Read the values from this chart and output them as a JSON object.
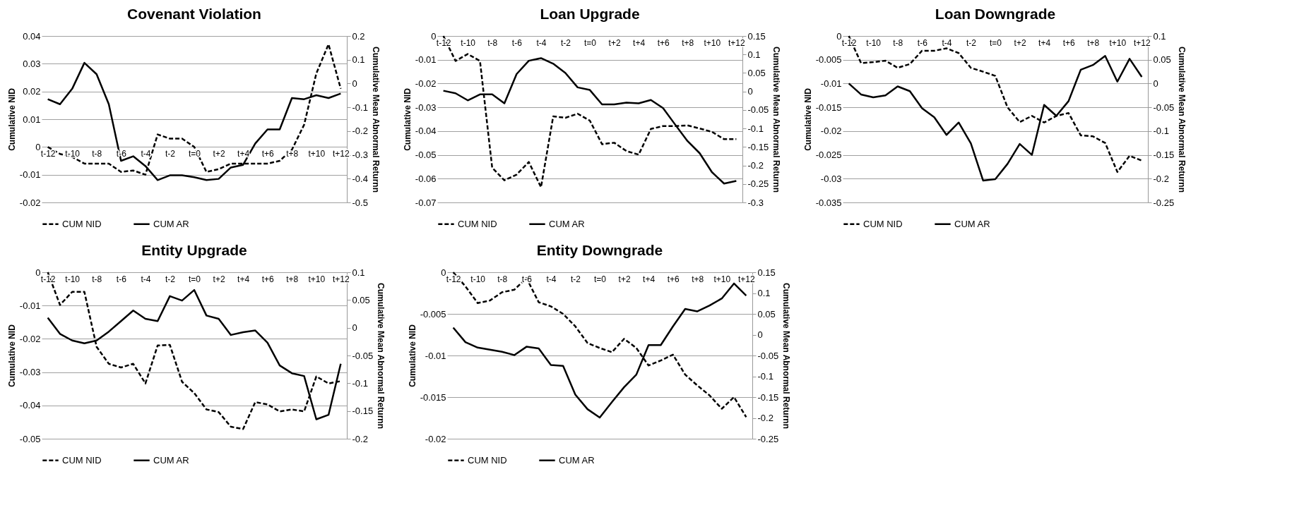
{
  "chart_data": [
    {
      "type": "line",
      "title": "Covenant Violation",
      "ylabel": "Cumulative NID",
      "y2label": "Cumulative Mean Abnormal Returnn",
      "categories": [
        "t-12",
        null,
        "t-10",
        null,
        "t-8",
        null,
        "t-6",
        null,
        "t-4",
        null,
        "t-2",
        null,
        "t=0",
        null,
        "t+2",
        null,
        "t+4",
        null,
        "t+6",
        null,
        "t+8",
        null,
        "t+10",
        null,
        "t+12"
      ],
      "ylim": [
        -0.02,
        0.04
      ],
      "yticks": [
        -0.02,
        -0.01,
        0,
        0.01,
        0.02,
        0.03,
        0.04
      ],
      "y2lim": [
        -0.5,
        0.2
      ],
      "y2ticks": [
        -0.5,
        -0.4,
        -0.3,
        -0.2,
        -0.1,
        0,
        0.1,
        0.2
      ],
      "grid": "y",
      "legend": "bottom",
      "series": [
        {
          "name": "CUM NID",
          "color": "#000000",
          "line_style": "dashed",
          "values": [
            0.0,
            -0.0025,
            -0.0036,
            -0.006,
            -0.006,
            -0.006,
            -0.009,
            -0.0085,
            -0.01,
            0.0045,
            0.003,
            0.003,
            0.0,
            -0.009,
            -0.008,
            -0.006,
            -0.006,
            -0.006,
            -0.006,
            -0.005,
            -0.001,
            0.008,
            0.0265,
            0.037,
            0.021
          ]
        },
        {
          "name": "CUM AR",
          "color": "#000000",
          "line_style": "solid",
          "axis": "y2",
          "values": [
            -0.066,
            -0.087,
            -0.022,
            0.087,
            0.039,
            -0.087,
            -0.325,
            -0.306,
            -0.347,
            -0.406,
            -0.386,
            -0.386,
            -0.394,
            -0.406,
            -0.401,
            -0.353,
            -0.342,
            -0.252,
            -0.193,
            -0.193,
            -0.061,
            -0.066,
            -0.049,
            -0.061,
            -0.042
          ]
        }
      ]
    },
    {
      "type": "line",
      "title": "Loan Upgrade",
      "ylabel": "Cumulative NID",
      "y2label": "Cumulative Mean Abnormal Returnn",
      "categories": [
        "t-12",
        null,
        "t-10",
        null,
        "t-8",
        null,
        "t-6",
        null,
        "t-4",
        null,
        "t-2",
        null,
        "t=0",
        null,
        "t+2",
        null,
        "t+4",
        null,
        "t+6",
        null,
        "t+8",
        null,
        "t+10",
        null,
        "t+12"
      ],
      "ylim": [
        -0.07,
        0
      ],
      "yticks": [
        -0.07,
        -0.06,
        -0.05,
        -0.04,
        -0.03,
        -0.02,
        -0.01,
        0
      ],
      "y2lim": [
        -0.3,
        0.15
      ],
      "y2ticks": [
        -0.3,
        -0.25,
        -0.2,
        -0.15,
        -0.1,
        -0.05,
        0,
        0.05,
        0.1,
        0.15
      ],
      "grid": "y",
      "legend": "bottom",
      "series": [
        {
          "name": "CUM NID",
          "color": "#000000",
          "line_style": "dashed",
          "values": [
            0.0,
            -0.0105,
            -0.0076,
            -0.0105,
            -0.0554,
            -0.0607,
            -0.0583,
            -0.053,
            -0.0636,
            -0.0338,
            -0.0344,
            -0.0327,
            -0.0356,
            -0.0455,
            -0.0449,
            -0.0484,
            -0.0499,
            -0.0391,
            -0.0379,
            -0.0379,
            -0.0376,
            -0.0389,
            -0.0403,
            -0.0434,
            -0.0434
          ]
        },
        {
          "name": "CUM AR",
          "color": "#000000",
          "line_style": "solid",
          "axis": "y2",
          "values": [
            0.002,
            -0.005,
            -0.024,
            -0.008,
            -0.008,
            -0.032,
            0.047,
            0.083,
            0.09,
            0.075,
            0.05,
            0.011,
            0.004,
            -0.035,
            -0.035,
            -0.03,
            -0.032,
            -0.023,
            -0.045,
            -0.09,
            -0.134,
            -0.167,
            -0.218,
            -0.249,
            -0.242
          ]
        }
      ]
    },
    {
      "type": "line",
      "title": "Loan Downgrade",
      "ylabel": "Cumulative NID",
      "y2label": "Cumulative Mean Abnormal Returnn",
      "categories": [
        "t-12",
        null,
        "t-10",
        null,
        "t-8",
        null,
        "t-6",
        null,
        "t-4",
        null,
        "t-2",
        null,
        "t=0",
        null,
        "t+2",
        null,
        "t+4",
        null,
        "t+6",
        null,
        "t+8",
        null,
        "t+10",
        null,
        "t+12"
      ],
      "ylim": [
        -0.035,
        0
      ],
      "yticks": [
        -0.035,
        -0.03,
        -0.025,
        -0.02,
        -0.015,
        -0.01,
        -0.005,
        0
      ],
      "y2lim": [
        -0.25,
        0.1
      ],
      "y2ticks": [
        -0.25,
        -0.2,
        -0.15,
        -0.1,
        -0.05,
        0,
        0.05,
        0.1
      ],
      "grid": "y",
      "legend": "bottom",
      "series": [
        {
          "name": "CUM NID",
          "color": "#000000",
          "line_style": "dashed",
          "values": [
            0.0,
            -0.0057,
            -0.0055,
            -0.0052,
            -0.0067,
            -0.0059,
            -0.0031,
            -0.0031,
            -0.0026,
            -0.0036,
            -0.0067,
            -0.0075,
            -0.0084,
            -0.015,
            -0.0181,
            -0.0168,
            -0.0182,
            -0.0168,
            -0.0162,
            -0.0209,
            -0.0211,
            -0.0225,
            -0.0286,
            -0.0252,
            -0.0262
          ]
        },
        {
          "name": "CUM AR",
          "color": "#000000",
          "line_style": "solid",
          "axis": "y2",
          "values": [
            0.0,
            -0.023,
            -0.029,
            -0.025,
            -0.006,
            -0.016,
            -0.052,
            -0.071,
            -0.108,
            -0.082,
            -0.126,
            -0.204,
            -0.201,
            -0.169,
            -0.127,
            -0.15,
            -0.045,
            -0.068,
            -0.037,
            0.029,
            0.039,
            0.058,
            0.004,
            0.052,
            0.014
          ]
        }
      ]
    },
    {
      "type": "line",
      "title": "Entity Upgrade",
      "ylabel": "Cumulative NID",
      "y2label": "Cumulative Mean Abnormal Returnn",
      "categories": [
        "t-12",
        null,
        "t-10",
        null,
        "t-8",
        null,
        "t-6",
        null,
        "t-4",
        null,
        "t-2",
        null,
        "t=0",
        null,
        "t+2",
        null,
        "t+4",
        null,
        "t+6",
        null,
        "t+8",
        null,
        "t+10",
        null,
        "t+12"
      ],
      "ylim": [
        -0.05,
        0
      ],
      "yticks": [
        -0.05,
        -0.04,
        -0.03,
        -0.02,
        -0.01,
        0
      ],
      "y2lim": [
        -0.2,
        0.1
      ],
      "y2ticks": [
        -0.2,
        -0.15,
        -0.1,
        -0.05,
        0,
        0.05,
        0.1
      ],
      "grid": "y",
      "legend": "bottom",
      "series": [
        {
          "name": "CUM NID",
          "color": "#000000",
          "line_style": "dashed",
          "values": [
            0.0,
            -0.0098,
            -0.0059,
            -0.0059,
            -0.0224,
            -0.0275,
            -0.0286,
            -0.0275,
            -0.0334,
            -0.022,
            -0.0218,
            -0.0329,
            -0.0363,
            -0.0412,
            -0.042,
            -0.0464,
            -0.0471,
            -0.039,
            -0.0397,
            -0.0418,
            -0.0412,
            -0.0418,
            -0.0313,
            -0.0334,
            -0.0327
          ]
        },
        {
          "name": "CUM AR",
          "color": "#000000",
          "line_style": "solid",
          "axis": "y2",
          "values": [
            0.018,
            -0.011,
            -0.023,
            -0.028,
            -0.023,
            -0.007,
            0.012,
            0.031,
            0.016,
            0.012,
            0.057,
            0.049,
            0.068,
            0.022,
            0.016,
            -0.013,
            -0.008,
            -0.005,
            -0.027,
            -0.068,
            -0.082,
            -0.087,
            -0.165,
            -0.157,
            -0.065
          ]
        }
      ]
    },
    {
      "type": "line",
      "title": "Entity Downgrade",
      "ylabel": "Cumulative NID",
      "y2label": "Cumulative Mean Abnormal Returnn",
      "categories": [
        "t-12",
        null,
        "t-10",
        null,
        "t-8",
        null,
        "t-6",
        null,
        "t-4",
        null,
        "t-2",
        null,
        "t=0",
        null,
        "t+2",
        null,
        "t+4",
        null,
        "t+6",
        null,
        "t+8",
        null,
        "t+10",
        null,
        "t+12"
      ],
      "ylim": [
        -0.02,
        0
      ],
      "yticks": [
        -0.02,
        -0.015,
        -0.01,
        -0.005,
        0
      ],
      "y2lim": [
        -0.25,
        0.15
      ],
      "y2ticks": [
        -0.25,
        -0.2,
        -0.15,
        -0.1,
        -0.05,
        0,
        0.05,
        0.1,
        0.15
      ],
      "grid": "y",
      "legend": "bottom",
      "series": [
        {
          "name": "CUM NID",
          "color": "#000000",
          "line_style": "dashed",
          "values": [
            0.0,
            -0.0017,
            -0.0037,
            -0.0034,
            -0.0024,
            -0.0021,
            -0.0007,
            -0.0036,
            -0.0041,
            -0.005,
            -0.0065,
            -0.0085,
            -0.0091,
            -0.0096,
            -0.008,
            -0.0091,
            -0.0112,
            -0.0106,
            -0.0099,
            -0.0123,
            -0.0136,
            -0.0148,
            -0.0164,
            -0.015,
            -0.0174
          ]
        },
        {
          "name": "CUM AR",
          "color": "#000000",
          "line_style": "solid",
          "axis": "y2",
          "values": [
            0.017,
            -0.018,
            -0.031,
            -0.036,
            -0.041,
            -0.049,
            -0.029,
            -0.033,
            -0.073,
            -0.075,
            -0.144,
            -0.179,
            -0.199,
            -0.162,
            -0.126,
            -0.096,
            -0.025,
            -0.025,
            0.02,
            0.062,
            0.056,
            0.07,
            0.087,
            0.123,
            0.094
          ]
        }
      ]
    }
  ]
}
